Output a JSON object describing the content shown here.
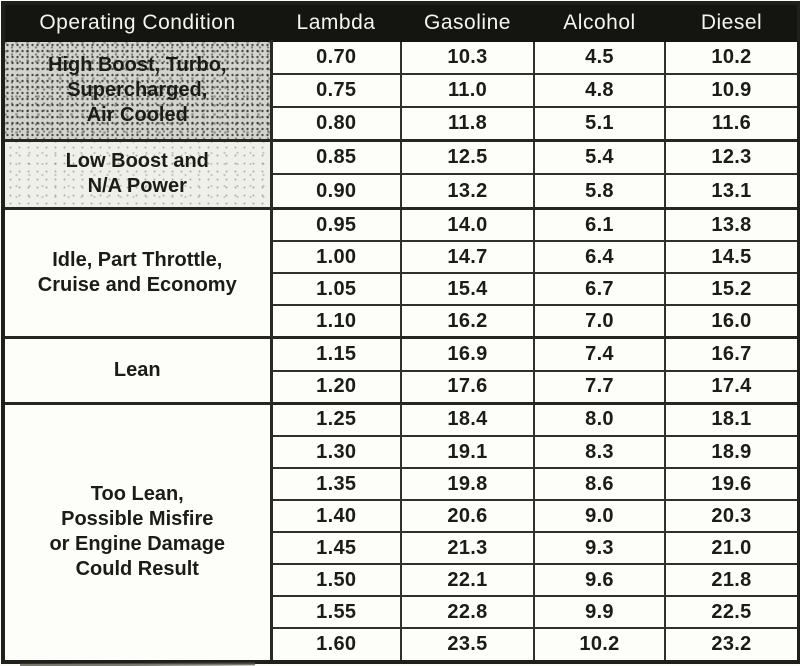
{
  "colors": {
    "header_bg": "#141411",
    "header_text": "#f5f5ee",
    "border": "#31312c",
    "text": "#1b1b17",
    "group_dark_bg": "#d4d4cf",
    "group_light_bg": "#f0f0ea",
    "page_bg": "#fbfbf7"
  },
  "table": {
    "columns": [
      "Operating Condition",
      "Lambda",
      "Gasoline",
      "Alcohol",
      "Diesel"
    ],
    "value_column_keys": [
      "lambda",
      "gasoline",
      "alcohol",
      "diesel"
    ],
    "groups": [
      {
        "condition_lines": [
          "High Boost, Turbo,",
          "Supercharged,",
          "Air Cooled"
        ],
        "shading": "dark",
        "rows": [
          [
            "0.70",
            "10.3",
            "4.5",
            "10.2"
          ],
          [
            "0.75",
            "11.0",
            "4.8",
            "10.9"
          ],
          [
            "0.80",
            "11.8",
            "5.1",
            "11.6"
          ]
        ]
      },
      {
        "condition_lines": [
          "Low Boost and",
          "N/A Power"
        ],
        "shading": "light",
        "rows": [
          [
            "0.85",
            "12.5",
            "5.4",
            "12.3"
          ],
          [
            "0.90",
            "13.2",
            "5.8",
            "13.1"
          ]
        ]
      },
      {
        "condition_lines": [
          "Idle, Part Throttle,",
          "Cruise and Economy"
        ],
        "shading": "none",
        "rows": [
          [
            "0.95",
            "14.0",
            "6.1",
            "13.8"
          ],
          [
            "1.00",
            "14.7",
            "6.4",
            "14.5"
          ],
          [
            "1.05",
            "15.4",
            "6.7",
            "15.2"
          ],
          [
            "1.10",
            "16.2",
            "7.0",
            "16.0"
          ]
        ]
      },
      {
        "condition_lines": [
          "Lean"
        ],
        "shading": "none",
        "rows": [
          [
            "1.15",
            "16.9",
            "7.4",
            "16.7"
          ],
          [
            "1.20",
            "17.6",
            "7.7",
            "17.4"
          ]
        ]
      },
      {
        "condition_lines": [
          "Too Lean,",
          "Possible Misfire",
          "or Engine Damage",
          "Could Result"
        ],
        "shading": "none",
        "rows": [
          [
            "1.25",
            "18.4",
            "8.0",
            "18.1"
          ],
          [
            "1.30",
            "19.1",
            "8.3",
            "18.9"
          ],
          [
            "1.35",
            "19.8",
            "8.6",
            "19.6"
          ],
          [
            "1.40",
            "20.6",
            "9.0",
            "20.3"
          ],
          [
            "1.45",
            "21.3",
            "9.3",
            "21.0"
          ],
          [
            "1.50",
            "22.1",
            "9.6",
            "21.8"
          ],
          [
            "1.55",
            "22.8",
            "9.9",
            "22.5"
          ],
          [
            "1.60",
            "23.5",
            "10.2",
            "23.2"
          ]
        ]
      }
    ]
  }
}
